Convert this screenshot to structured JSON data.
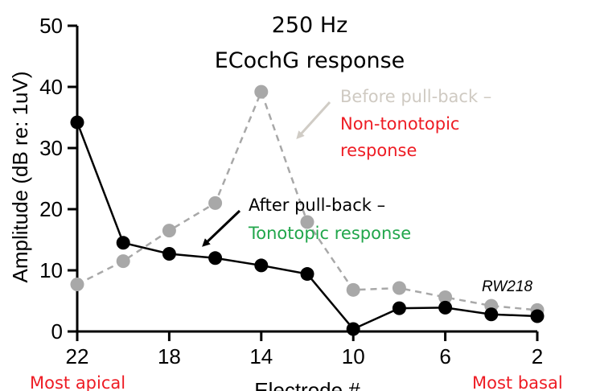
{
  "chart_data": {
    "type": "line",
    "title": [
      "250 Hz",
      "ECochG response"
    ],
    "xlabel": "Electrode #",
    "ylabel": "Amplitude (dB re: 1uV)",
    "xlim": [
      22,
      2
    ],
    "ylim": [
      0,
      50
    ],
    "x_ticks": [
      22,
      18,
      14,
      10,
      6,
      2
    ],
    "y_ticks": [
      0,
      10,
      20,
      30,
      40,
      50
    ],
    "grid": false,
    "series": [
      {
        "style": "dashed",
        "color": "#a8a8a8",
        "x": [
          22,
          20,
          18,
          16,
          14,
          12,
          10,
          8,
          6,
          4,
          2
        ],
        "y": [
          7.7,
          11.5,
          16.5,
          21,
          39.2,
          17.9,
          6.8,
          7.1,
          5.6,
          4.2,
          3.5
        ]
      },
      {
        "style": "solid",
        "color": "#000000",
        "x": [
          22,
          20,
          18,
          16,
          14,
          12,
          10,
          8,
          6,
          4,
          2
        ],
        "y": [
          34.2,
          14.5,
          12.7,
          12,
          10.8,
          9.4,
          0.4,
          3.8,
          3.9,
          2.8,
          2.5
        ]
      }
    ],
    "annotations": {
      "before": {
        "line1": "Before pull-back –",
        "line2": "Non-tonotopic",
        "line3": "response",
        "color_gray": "#cfcac2",
        "color_red": "#ee1c24"
      },
      "after": {
        "line1": "After pull-back –",
        "line2": "Tonotopic response",
        "color_black": "#000000",
        "color_green": "#21a64b"
      },
      "subject_id": "RW218",
      "left_end": "Most apical",
      "right_end": "Most basal",
      "end_color": "#ee1c24"
    }
  }
}
